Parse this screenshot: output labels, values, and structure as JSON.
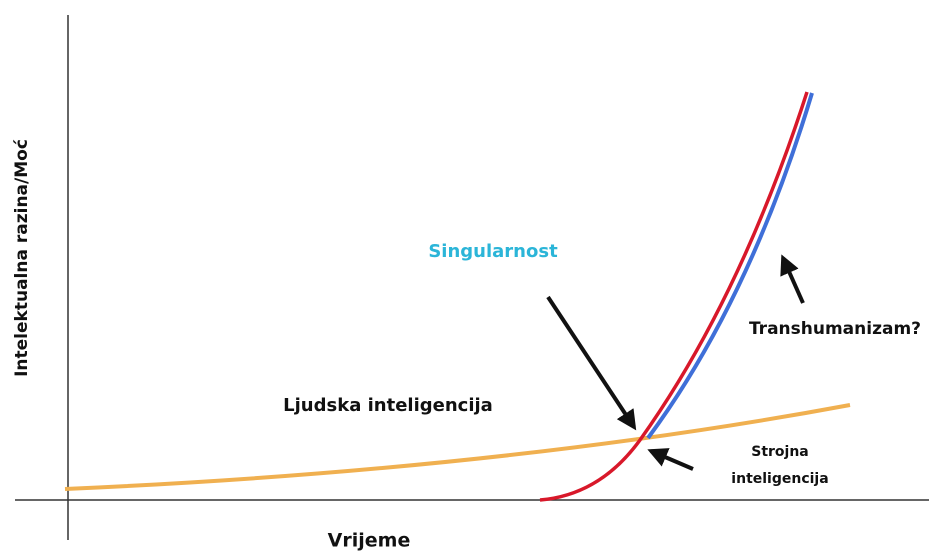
{
  "axes": {
    "y_label": "Intelektualna razina/Moć",
    "x_label": "Vrijeme"
  },
  "labels": {
    "singularity": "Singularnost",
    "transhumanism": "Transhumanizam?",
    "human": "Ljudska inteligencija",
    "machine": [
      "Strojna",
      "inteligencija"
    ]
  }
}
